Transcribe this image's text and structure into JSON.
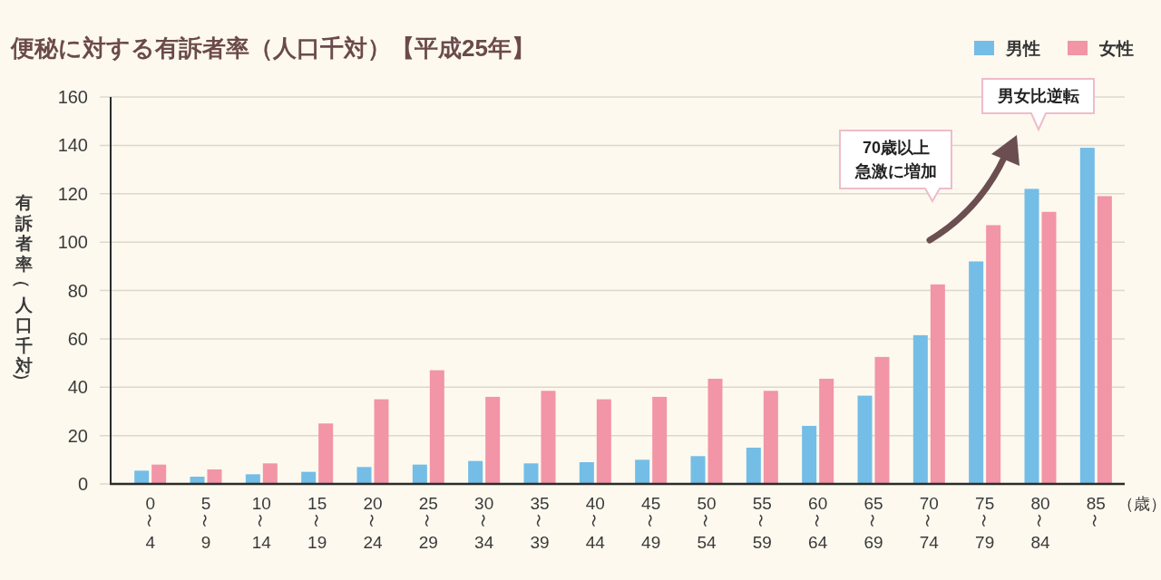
{
  "chart_data": {
    "type": "bar",
    "title": "便秘に対する有訴者率（人口千対）【平成25年】",
    "xlabel": "（歳）",
    "ylabel": "有訴者率（人口千対）",
    "categories": [
      "0\n〜\n4",
      "5\n〜\n9",
      "10\n〜\n14",
      "15\n〜\n19",
      "20\n〜\n24",
      "25\n〜\n29",
      "30\n〜\n34",
      "35\n〜\n39",
      "40\n〜\n44",
      "45\n〜\n49",
      "50\n〜\n54",
      "55\n〜\n59",
      "60\n〜\n64",
      "65\n〜\n69",
      "70\n〜\n74",
      "75\n〜\n79",
      "80\n〜\n84",
      "85\n〜"
    ],
    "series": [
      {
        "name": "男性",
        "color": "#74bde6",
        "values": [
          5.5,
          3,
          4,
          5,
          7,
          8,
          9.5,
          8.5,
          9,
          10,
          11.5,
          15,
          24,
          36.5,
          61.5,
          92,
          122,
          139
        ]
      },
      {
        "name": "女性",
        "color": "#f295a6",
        "values": [
          8,
          6,
          8.5,
          25,
          35,
          47,
          36,
          38.5,
          35,
          36,
          43.5,
          38.5,
          43.5,
          52.5,
          82.5,
          107,
          112.5,
          119
        ]
      }
    ],
    "ylim": [
      0,
      160
    ],
    "yticks": [
      0,
      20,
      40,
      60,
      80,
      100,
      120,
      140,
      160
    ],
    "grid": "y",
    "legend": "top right",
    "annotations": [
      "70歳以上急激に増加",
      "男女比逆転"
    ]
  }
}
